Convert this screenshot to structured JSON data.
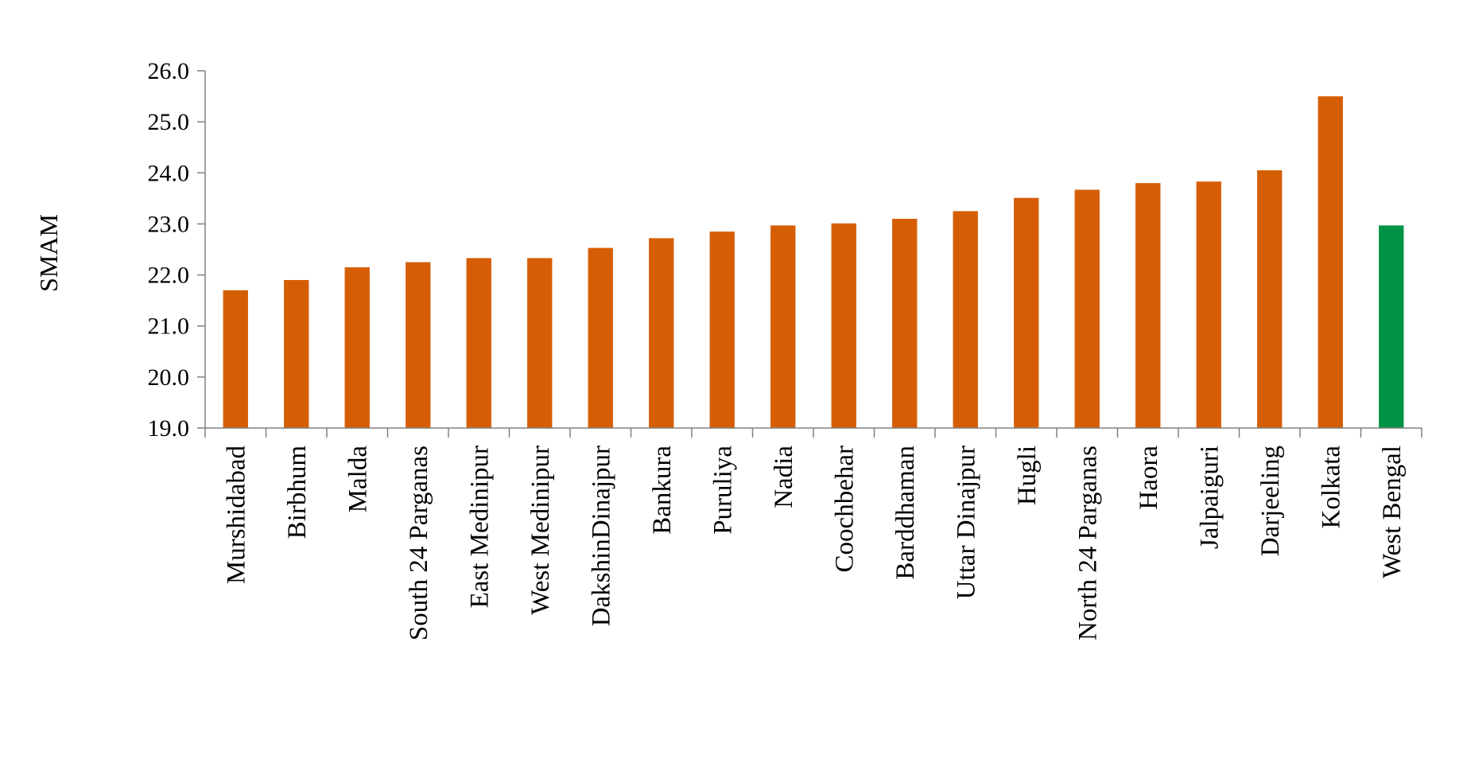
{
  "chart_data": {
    "type": "bar",
    "title": "",
    "xlabel": "",
    "ylabel": "SMAM",
    "ylim": [
      19.0,
      26.0
    ],
    "yticks": [
      "19.0",
      "20.0",
      "21.0",
      "22.0",
      "23.0",
      "24.0",
      "25.0",
      "26.0"
    ],
    "grid": false,
    "legend": "none",
    "categories": [
      "Murshidabad",
      "Birbhum",
      "Malda",
      "South 24 Parganas",
      "East Medinipur",
      "West Medinipur",
      "DakshinDinajpur",
      "Bankura",
      "Puruliya",
      "Nadia",
      "Coochbehar",
      "Barddhaman",
      "Uttar Dinajpur",
      "Hugli",
      "North 24 Parganas",
      "Haora",
      "Jalpaiguri",
      "Darjeeling",
      "Kolkata",
      "West Bengal"
    ],
    "values": [
      21.7,
      21.9,
      22.15,
      22.25,
      22.33,
      22.33,
      22.53,
      22.72,
      22.85,
      22.97,
      23.01,
      23.1,
      23.25,
      23.51,
      23.67,
      23.8,
      23.83,
      24.05,
      25.5,
      22.97
    ],
    "colors": {
      "district": "#d55e05",
      "state": "#009245"
    },
    "highlight_category": "West Bengal"
  }
}
